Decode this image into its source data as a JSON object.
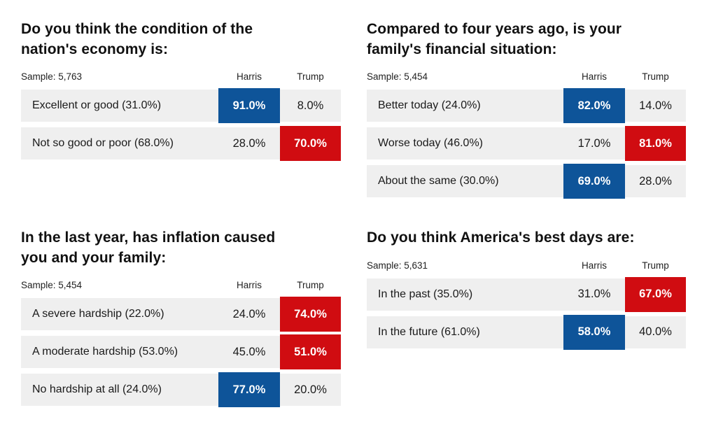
{
  "colors": {
    "harris_highlight": "#0e5499",
    "trump_highlight": "#d00c11",
    "row_background": "#efefef",
    "text": "#1a1a1a"
  },
  "columns": {
    "harris": "Harris",
    "trump": "Trump"
  },
  "chart_data": [
    {
      "type": "table",
      "title": "Do you think the condition of the\nnation's economy is:",
      "sample_label": "Sample: 5,763",
      "sample_size": 5763,
      "columns": [
        "Harris",
        "Trump"
      ],
      "rows": [
        {
          "label": "Excellent or good (31.0%)",
          "option_share": 31.0,
          "harris": "91.0%",
          "trump": "8.0%",
          "harris_value": 91.0,
          "trump_value": 8.0,
          "winner": "harris"
        },
        {
          "label": "Not so good or poor (68.0%)",
          "option_share": 68.0,
          "harris": "28.0%",
          "trump": "70.0%",
          "harris_value": 28.0,
          "trump_value": 70.0,
          "winner": "trump"
        }
      ]
    },
    {
      "type": "table",
      "title": "Compared to four years ago, is your\nfamily's financial situation:",
      "sample_label": "Sample: 5,454",
      "sample_size": 5454,
      "columns": [
        "Harris",
        "Trump"
      ],
      "rows": [
        {
          "label": "Better today (24.0%)",
          "option_share": 24.0,
          "harris": "82.0%",
          "trump": "14.0%",
          "harris_value": 82.0,
          "trump_value": 14.0,
          "winner": "harris"
        },
        {
          "label": "Worse today (46.0%)",
          "option_share": 46.0,
          "harris": "17.0%",
          "trump": "81.0%",
          "harris_value": 17.0,
          "trump_value": 81.0,
          "winner": "trump"
        },
        {
          "label": "About the same (30.0%)",
          "option_share": 30.0,
          "harris": "69.0%",
          "trump": "28.0%",
          "harris_value": 69.0,
          "trump_value": 28.0,
          "winner": "harris"
        }
      ]
    },
    {
      "type": "table",
      "title": "In the last year, has inflation caused\nyou and your family:",
      "sample_label": "Sample: 5,454",
      "sample_size": 5454,
      "columns": [
        "Harris",
        "Trump"
      ],
      "rows": [
        {
          "label": "A severe hardship (22.0%)",
          "option_share": 22.0,
          "harris": "24.0%",
          "trump": "74.0%",
          "harris_value": 24.0,
          "trump_value": 74.0,
          "winner": "trump"
        },
        {
          "label": "A moderate hardship (53.0%)",
          "option_share": 53.0,
          "harris": "45.0%",
          "trump": "51.0%",
          "harris_value": 45.0,
          "trump_value": 51.0,
          "winner": "trump"
        },
        {
          "label": "No hardship at all (24.0%)",
          "option_share": 24.0,
          "harris": "77.0%",
          "trump": "20.0%",
          "harris_value": 77.0,
          "trump_value": 20.0,
          "winner": "harris"
        }
      ]
    },
    {
      "type": "table",
      "title": "Do you think America's best days are:",
      "sample_label": "Sample: 5,631",
      "sample_size": 5631,
      "columns": [
        "Harris",
        "Trump"
      ],
      "rows": [
        {
          "label": "In the past (35.0%)",
          "option_share": 35.0,
          "harris": "31.0%",
          "trump": "67.0%",
          "harris_value": 31.0,
          "trump_value": 67.0,
          "winner": "trump"
        },
        {
          "label": "In the future (61.0%)",
          "option_share": 61.0,
          "harris": "58.0%",
          "trump": "40.0%",
          "harris_value": 58.0,
          "trump_value": 40.0,
          "winner": "harris"
        }
      ]
    }
  ]
}
